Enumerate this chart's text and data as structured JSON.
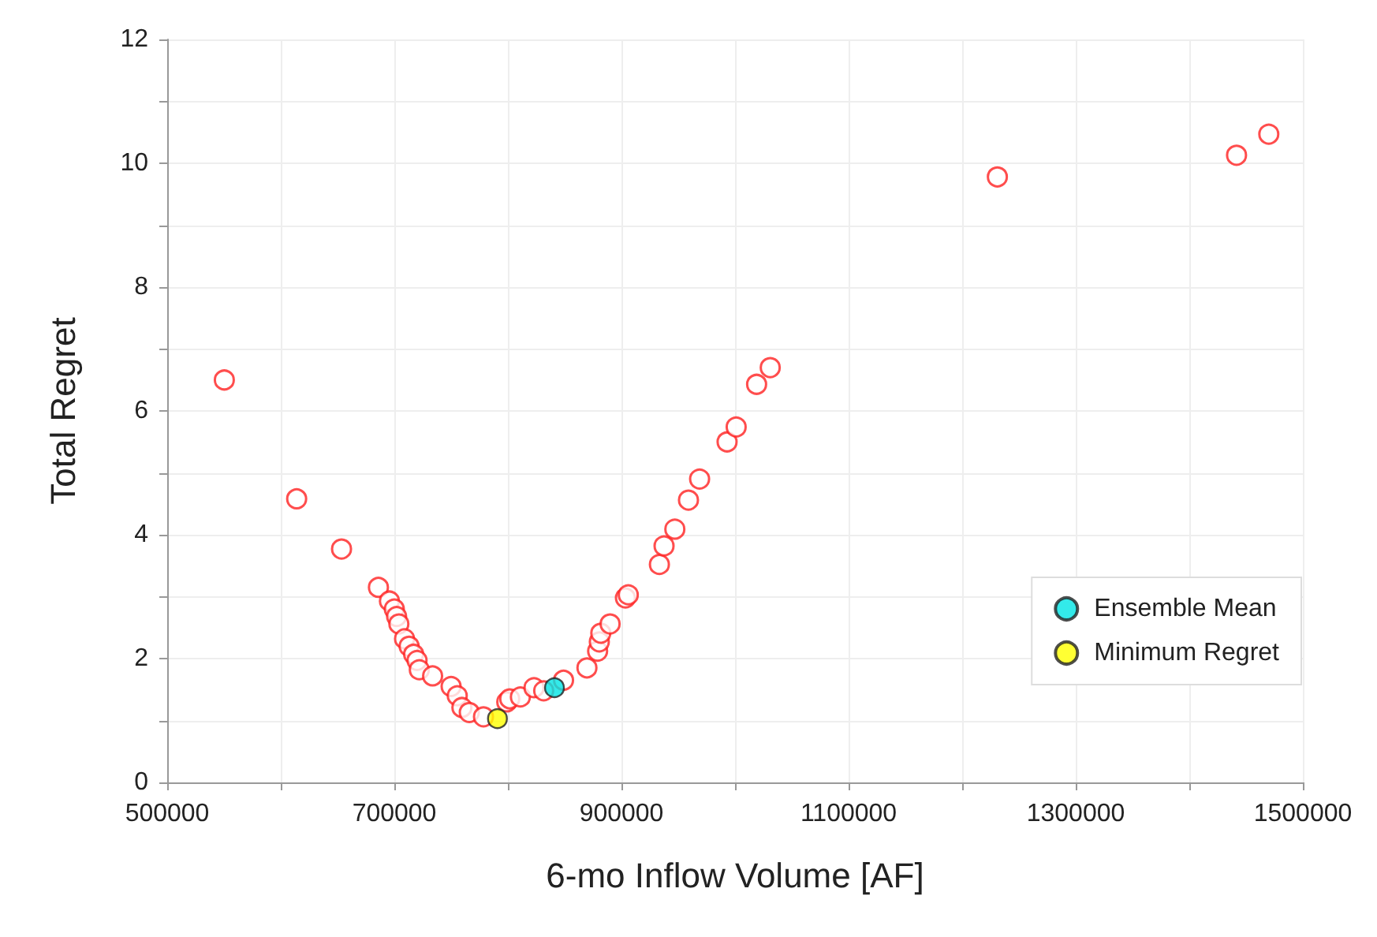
{
  "chart_data": {
    "type": "scatter",
    "xlabel": "6-mo Inflow Volume [AF]",
    "ylabel": "Total Regret",
    "xlim": [
      500000,
      1500000
    ],
    "ylim": [
      0,
      12
    ],
    "xticks": [
      500000,
      {
        "value": 600000,
        "label": null
      },
      700000,
      {
        "value": 800000,
        "label": null
      },
      900000,
      {
        "value": 1000000,
        "label": null
      },
      1100000,
      {
        "value": 1200000,
        "label": null
      },
      1300000,
      {
        "value": 1400000,
        "label": null
      },
      1500000
    ],
    "yticks": [
      0,
      {
        "value": 1,
        "label": null
      },
      2,
      {
        "value": 3,
        "label": null
      },
      4,
      {
        "value": 5,
        "label": null
      },
      6,
      {
        "value": 7,
        "label": null
      },
      8,
      {
        "value": 9,
        "label": null
      },
      10,
      {
        "value": 11,
        "label": null
      },
      12
    ],
    "grid": true,
    "legend": "right",
    "marker": "circle",
    "series": [
      {
        "color": "#ff2020",
        "x": [
          550300,
          614000,
          653500,
          686000,
          695700,
          700000,
          702000,
          704000,
          709000,
          713000,
          717000,
          720000,
          722000,
          733700,
          750000,
          755400,
          759500,
          766000,
          778500,
          799000,
          801600,
          811000,
          823000,
          831500,
          849000,
          869600,
          879000,
          880500,
          881800,
          890000,
          903500,
          906000,
          933400,
          937500,
          947000,
          959000,
          968800,
          993000,
          1001000,
          1019000,
          1031000,
          1231000,
          1441600,
          1470000
        ],
        "values": [
          6.5,
          4.58,
          3.77,
          3.15,
          2.93,
          2.8,
          2.68,
          2.56,
          2.32,
          2.2,
          2.07,
          1.97,
          1.82,
          1.72,
          1.55,
          1.4,
          1.21,
          1.13,
          1.06,
          1.3,
          1.35,
          1.38,
          1.53,
          1.48,
          1.65,
          1.85,
          2.12,
          2.27,
          2.41,
          2.56,
          2.98,
          3.03,
          3.52,
          3.82,
          4.09,
          4.56,
          4.9,
          5.5,
          5.74,
          6.43,
          6.7,
          9.78,
          10.13,
          10.47
        ]
      },
      {
        "name": "Ensemble Mean",
        "color": "#00e5e5",
        "x": [
          841000
        ],
        "values": [
          1.53
        ]
      },
      {
        "name": "Minimum Regret",
        "color": "#ffff00",
        "x": [
          790800
        ],
        "values": [
          1.03
        ]
      }
    ]
  }
}
